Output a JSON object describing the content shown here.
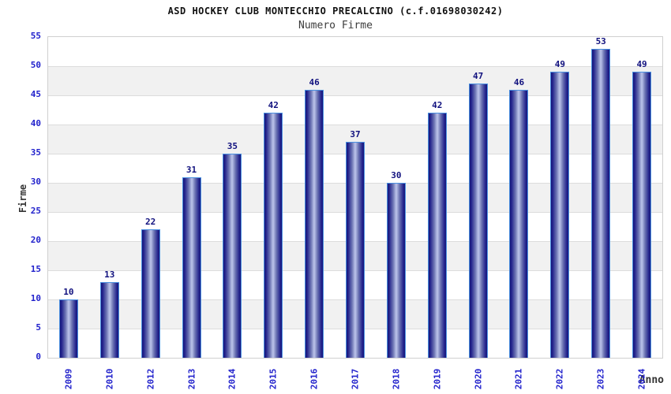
{
  "header": {
    "title": "ASD HOCKEY CLUB MONTECCHIO PRECALCINO (c.f.01698030242)",
    "subtitle": "Numero Firme"
  },
  "chart_data": {
    "type": "bar",
    "title": "ASD HOCKEY CLUB MONTECCHIO PRECALCINO (c.f.01698030242)",
    "subtitle": "Numero Firme",
    "categories": [
      "2009",
      "2010",
      "2012",
      "2013",
      "2014",
      "2015",
      "2016",
      "2017",
      "2018",
      "2019",
      "2020",
      "2021",
      "2022",
      "2023",
      "2024"
    ],
    "values": [
      10,
      13,
      22,
      31,
      35,
      42,
      46,
      37,
      30,
      42,
      47,
      46,
      49,
      53,
      49
    ],
    "xlabel": "Anno",
    "ylabel": "Firme",
    "ylim": [
      0,
      55
    ],
    "ytick_step": 5,
    "ytick_labels": [
      "0",
      "5",
      "10",
      "15",
      "20",
      "25",
      "30",
      "35",
      "40",
      "45",
      "50",
      "55"
    ],
    "grid": "horizontal-alternating-bands",
    "legend_position": "none",
    "colors": {
      "bar_edge_dark": "#15157a",
      "bar_center_light": "#b6bee6",
      "bar_border": "#4a90e0",
      "value_label": "#10107e",
      "axis_tick_text": "#2222cc",
      "axis_title_text": "#333333",
      "band_gray": "#f1f1f1",
      "band_white": "#ffffff",
      "plot_border": "#d0d0d0",
      "title_text": "#111111",
      "subtitle_text": "#3c3c3c"
    }
  }
}
